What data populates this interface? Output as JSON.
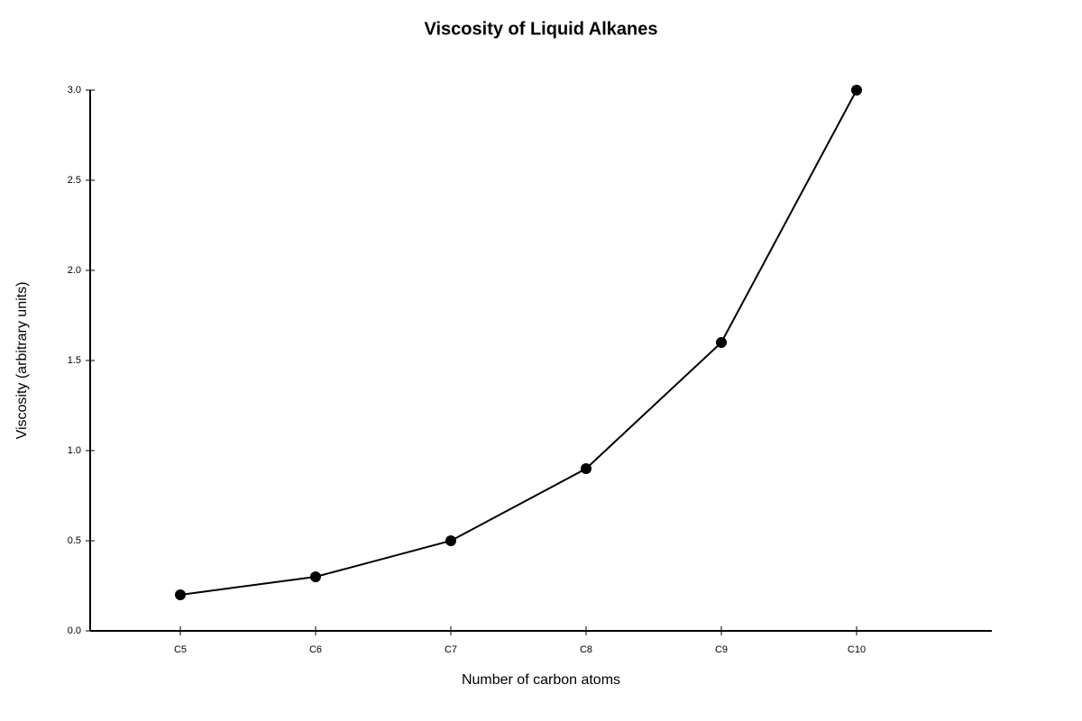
{
  "chart_data": {
    "type": "line",
    "title": "Viscosity of Liquid Alkanes",
    "x_label": "Number of carbon atoms",
    "y_label": "Viscosity (arbitrary units)",
    "categories": [
      "C5",
      "C6",
      "C7",
      "C8",
      "C9",
      "C10"
    ],
    "values": [
      0.2,
      0.3,
      0.5,
      0.9,
      1.6,
      3.0
    ],
    "color": "#000000",
    "ylim": [
      0,
      3
    ],
    "yticks": [
      {
        "value": 0,
        "label": "0.0"
      },
      0.5,
      {
        "value": 1,
        "label": "1.0"
      },
      1.5,
      {
        "value": 2,
        "label": "2.0"
      },
      2.5,
      {
        "value": 3,
        "label": "3.0"
      }
    ],
    "grid": false
  }
}
